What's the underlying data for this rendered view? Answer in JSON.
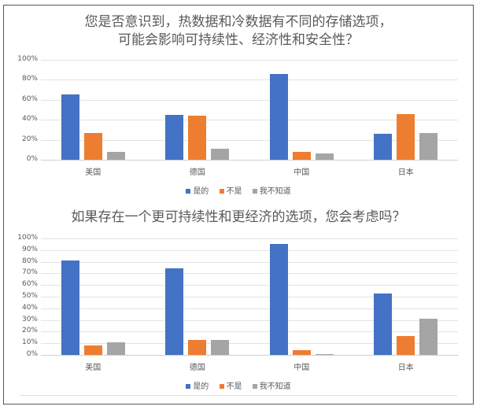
{
  "colors": {
    "yes": "#4472C4",
    "no": "#ED7D31",
    "dont_know": "#A5A5A5"
  },
  "legend": {
    "yes": "是的",
    "no": "不是",
    "dont_know": "我不知道"
  },
  "chart_data": [
    {
      "type": "bar",
      "title": "您是否意识到，热数据和冷数据有不同的存储选项，可能会影响可持续性、经济性和安全性？",
      "title_lines": [
        "您是否意识到，热数据和冷数据有不同的存储选项，",
        "可能会影响可持续性、经济性和安全性？"
      ],
      "categories": [
        "美国",
        "德国",
        "中国",
        "日本"
      ],
      "series": [
        {
          "name": "是的",
          "values": [
            65,
            45,
            86,
            26
          ]
        },
        {
          "name": "不是",
          "values": [
            27,
            44,
            8,
            46
          ]
        },
        {
          "name": "我不知道",
          "values": [
            8,
            11,
            6,
            27
          ]
        }
      ],
      "xlabel": "",
      "ylabel": "",
      "ylim": [
        0,
        100
      ],
      "yticks": [
        "0%",
        "20%",
        "40%",
        "60%",
        "80%",
        "100%"
      ],
      "grid": true,
      "legend_position": "bottom"
    },
    {
      "type": "bar",
      "title": "如果存在一个更可持续性和更经济的选项，您会考虑吗？",
      "title_lines": [
        "如果存在一个更可持续性和更经济的选项，您会考虑吗？"
      ],
      "categories": [
        "美国",
        "德国",
        "中国",
        "日本"
      ],
      "series": [
        {
          "name": "是的",
          "values": [
            81,
            74,
            95,
            53
          ]
        },
        {
          "name": "不是",
          "values": [
            8,
            13,
            4,
            16
          ]
        },
        {
          "name": "我不知道",
          "values": [
            11,
            13,
            1,
            31
          ]
        }
      ],
      "xlabel": "",
      "ylabel": "",
      "ylim": [
        0,
        100
      ],
      "yticks": [
        "0%",
        "10%",
        "20%",
        "30%",
        "40%",
        "50%",
        "60%",
        "70%",
        "80%",
        "90%",
        "100%"
      ],
      "grid": true,
      "legend_position": "bottom"
    }
  ]
}
